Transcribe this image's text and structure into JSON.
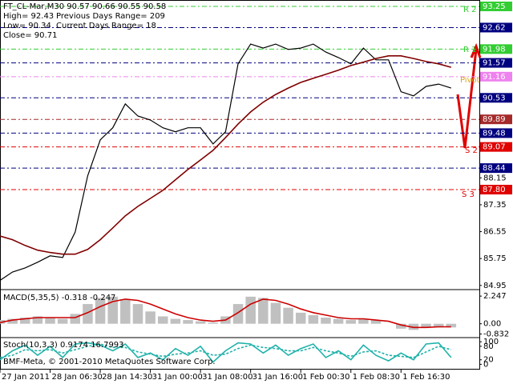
{
  "chart_data": [
    {
      "type": "line",
      "title": "FT_CL-Mar,M30  90.57 90.66 90.55 90.58",
      "info": [
        "High= 92.43",
        "Previous Days Range= 209",
        "Low= 90.34",
        "Current Days Range= 18",
        "Close= 90.71"
      ],
      "annotations": [
        "R 2",
        "R 1",
        "Pivot",
        "S 2",
        "S 3"
      ],
      "x": [
        0,
        4,
        8,
        12,
        16,
        20,
        24,
        28,
        32,
        36,
        40,
        44,
        48,
        52,
        56,
        60,
        64,
        68,
        72,
        76,
        80,
        84,
        88,
        92,
        96,
        100,
        104,
        108,
        112,
        116,
        120,
        124,
        128,
        132,
        136,
        140,
        144
      ],
      "xlim": [
        0,
        153
      ],
      "xticks": [
        {
          "value": 0,
          "label": "27 Jan 2011"
        },
        {
          "value": 16,
          "label": "28 Jan 06:30"
        },
        {
          "value": 32,
          "label": "28 Jan 14:30"
        },
        {
          "value": 48,
          "label": "31 Jan 00:00"
        },
        {
          "value": 64,
          "label": "31 Jan 08:00"
        },
        {
          "value": 80,
          "label": "31 Jan 16:00"
        },
        {
          "value": 96,
          "label": "1 Feb 00:30"
        },
        {
          "value": 112,
          "label": "1 Feb 08:30"
        },
        {
          "value": 128,
          "label": "1 Feb 16:30"
        }
      ],
      "ylim": [
        84.85,
        93.44
      ],
      "yticks": [
        88.15,
        87.35,
        86.55,
        85.75,
        84.95
      ],
      "levels": [
        {
          "value": 93.25,
          "color": "#32cd32"
        },
        {
          "value": 92.62,
          "color": "#000080"
        },
        {
          "value": 91.98,
          "color": "#32cd32"
        },
        {
          "value": 91.57,
          "color": "#000080"
        },
        {
          "value": 91.16,
          "color": "#ee82ee"
        },
        {
          "value": 90.53,
          "color": "#000080"
        },
        {
          "value": 89.89,
          "color": "#a52a2a"
        },
        {
          "value": 89.48,
          "color": "#000080"
        },
        {
          "value": 89.07,
          "color": "#e00000"
        },
        {
          "value": 88.44,
          "color": "#000080"
        },
        {
          "value": 87.8,
          "label": "87.80",
          "color": "#e00000"
        }
      ],
      "series": [
        {
          "color": "#000000",
          "values": [
            85.1,
            85.35,
            85.47,
            85.64,
            85.83,
            85.78,
            86.54,
            88.21,
            89.28,
            89.64,
            90.35,
            89.99,
            89.87,
            89.64,
            89.52,
            89.64,
            89.64,
            89.16,
            89.52,
            91.54,
            92.13,
            92.01,
            92.13,
            91.97,
            92.01,
            92.13,
            91.89,
            91.73,
            91.54,
            92.01,
            91.66,
            91.66,
            90.71,
            90.59,
            90.87,
            90.94,
            90.82
          ]
        },
        {
          "color": "#800000",
          "values": [
            86.42,
            86.31,
            86.14,
            86.0,
            85.93,
            85.88,
            85.88,
            86.02,
            86.31,
            86.66,
            87.02,
            87.3,
            87.54,
            87.78,
            88.09,
            88.4,
            88.68,
            88.97,
            89.35,
            89.75,
            90.11,
            90.4,
            90.63,
            90.82,
            90.99,
            91.11,
            91.23,
            91.35,
            91.49,
            91.59,
            91.7,
            91.78,
            91.78,
            91.7,
            91.61,
            91.54,
            91.44
          ]
        }
      ]
    },
    {
      "type": "macd",
      "title": "MACD(5,35,5) -0.318 -0.247",
      "x": [
        0,
        4,
        8,
        12,
        16,
        20,
        24,
        28,
        32,
        36,
        40,
        44,
        48,
        52,
        56,
        60,
        64,
        68,
        72,
        76,
        80,
        84,
        88,
        92,
        96,
        100,
        104,
        108,
        112,
        116,
        120,
        124,
        128,
        132,
        136,
        140,
        144
      ],
      "xlim": [
        0,
        153
      ],
      "ylim": [
        -1.06,
        2.71
      ],
      "yticks": [
        2.247,
        {
          "value": 0,
          "label": "0.00"
        },
        -0.832
      ],
      "series": [
        {
          "kind": "bar",
          "color": "#c0c0c0",
          "values": [
            0.3,
            0.4,
            0.5,
            0.6,
            0.5,
            0.4,
            0.8,
            1.6,
            2.1,
            2.2,
            2.0,
            1.6,
            1.0,
            0.6,
            0.4,
            0.3,
            0.2,
            0.1,
            0.6,
            1.6,
            2.2,
            2.1,
            1.7,
            1.3,
            0.9,
            0.7,
            0.5,
            0.4,
            0.3,
            0.4,
            0.3,
            0.0,
            -0.4,
            -0.5,
            -0.3,
            -0.3,
            -0.3
          ]
        },
        {
          "kind": "line",
          "color": "#cc0000",
          "values": [
            0.1,
            0.3,
            0.4,
            0.5,
            0.5,
            0.5,
            0.5,
            0.9,
            1.4,
            1.8,
            2.0,
            1.9,
            1.6,
            1.2,
            0.8,
            0.5,
            0.3,
            0.2,
            0.3,
            0.9,
            1.6,
            2.0,
            1.9,
            1.6,
            1.2,
            0.9,
            0.7,
            0.5,
            0.4,
            0.4,
            0.3,
            0.2,
            -0.1,
            -0.3,
            -0.3,
            -0.25,
            -0.25
          ]
        }
      ]
    },
    {
      "type": "line",
      "title": "Stoch(10,3,3) 0.9174 16.7993",
      "note": "BMF-Meta, © 2001-2010 MetaQuotes Software Corp.",
      "x": [
        0,
        4,
        8,
        12,
        16,
        20,
        24,
        28,
        32,
        36,
        40,
        44,
        48,
        52,
        56,
        60,
        64,
        68,
        72,
        76,
        80,
        84,
        88,
        92,
        96,
        100,
        104,
        108,
        112,
        116,
        120,
        124,
        128,
        132,
        136,
        140,
        144
      ],
      "xlim": [
        0,
        153
      ],
      "ylim": [
        -20,
        115
      ],
      "yticks": [
        100,
        80,
        20,
        0
      ],
      "series": [
        {
          "color": "#20b2aa",
          "values": [
            20,
            60,
            85,
            40,
            80,
            30,
            90,
            95,
            85,
            60,
            90,
            30,
            50,
            20,
            70,
            40,
            80,
            10,
            60,
            95,
            90,
            50,
            85,
            40,
            70,
            90,
            30,
            60,
            20,
            85,
            40,
            15,
            50,
            20,
            90,
            95,
            30
          ]
        },
        {
          "color": "#20b2aa",
          "dash": true,
          "values": [
            30,
            40,
            65,
            60,
            65,
            50,
            65,
            80,
            90,
            75,
            75,
            55,
            45,
            35,
            45,
            50,
            60,
            40,
            45,
            70,
            85,
            75,
            70,
            60,
            60,
            75,
            60,
            50,
            35,
            55,
            60,
            40,
            35,
            30,
            55,
            80,
            65
          ]
        }
      ]
    }
  ]
}
